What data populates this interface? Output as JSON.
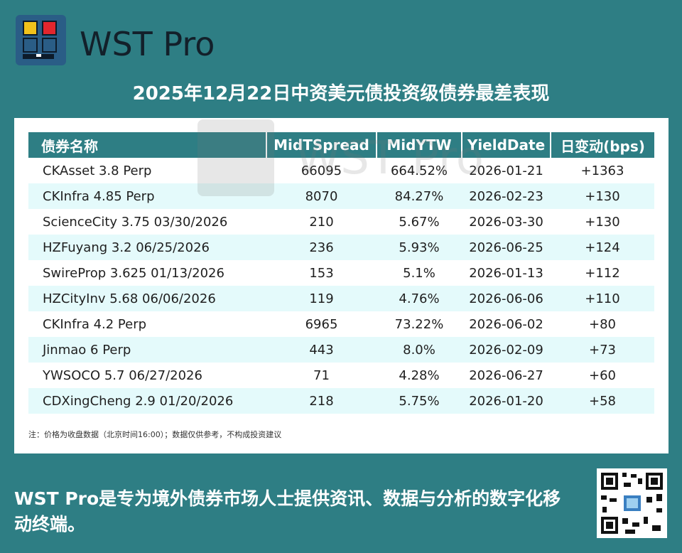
{
  "brand": {
    "name": "WST Pro"
  },
  "title": "2025年12月22日中资美元债投资级债券最差表现",
  "table": {
    "headers": [
      "债券名称",
      "MidTSpread",
      "MidYTW",
      "YieldDate",
      "日变动(bps)"
    ],
    "rows": [
      [
        "CKAsset 3.8 Perp",
        "66095",
        "664.52%",
        "2026-01-21",
        "+1363"
      ],
      [
        "CKInfra 4.85 Perp",
        "8070",
        "84.27%",
        "2026-02-23",
        "+130"
      ],
      [
        "ScienceCity 3.75 03/30/2026",
        "210",
        "5.67%",
        "2026-03-30",
        "+130"
      ],
      [
        "HZFuyang 3.2 06/25/2026",
        "236",
        "5.93%",
        "2026-06-25",
        "+124"
      ],
      [
        "SwireProp 3.625 01/13/2026",
        "153",
        "5.1%",
        "2026-01-13",
        "+112"
      ],
      [
        "HZCityInv 5.68 06/06/2026",
        "119",
        "4.76%",
        "2026-06-06",
        "+110"
      ],
      [
        "CKInfra 4.2 Perp",
        "6965",
        "73.22%",
        "2026-06-02",
        "+80"
      ],
      [
        "Jinmao 6 Perp",
        "443",
        "8.0%",
        "2026-02-09",
        "+73"
      ],
      [
        "YWSOCO 5.7 06/27/2026",
        "71",
        "4.28%",
        "2026-06-27",
        "+60"
      ],
      [
        "CDXingCheng 2.9 01/20/2026",
        "218",
        "5.75%",
        "2026-01-20",
        "+58"
      ]
    ]
  },
  "watermark": "WST Pro",
  "note": "注：价格为收盘数据（北京时间16:00）；数据仅供参考，不构成投资建议",
  "footer": "WST Pro是专为境外债券市场人士提供资讯、数据与分析的数字化移动终端。",
  "colors": {
    "background": "#2e7e84",
    "header_bg": "#2e7e84",
    "alt_row": "#e4fafb",
    "logo_bg": "#2a5d86"
  }
}
